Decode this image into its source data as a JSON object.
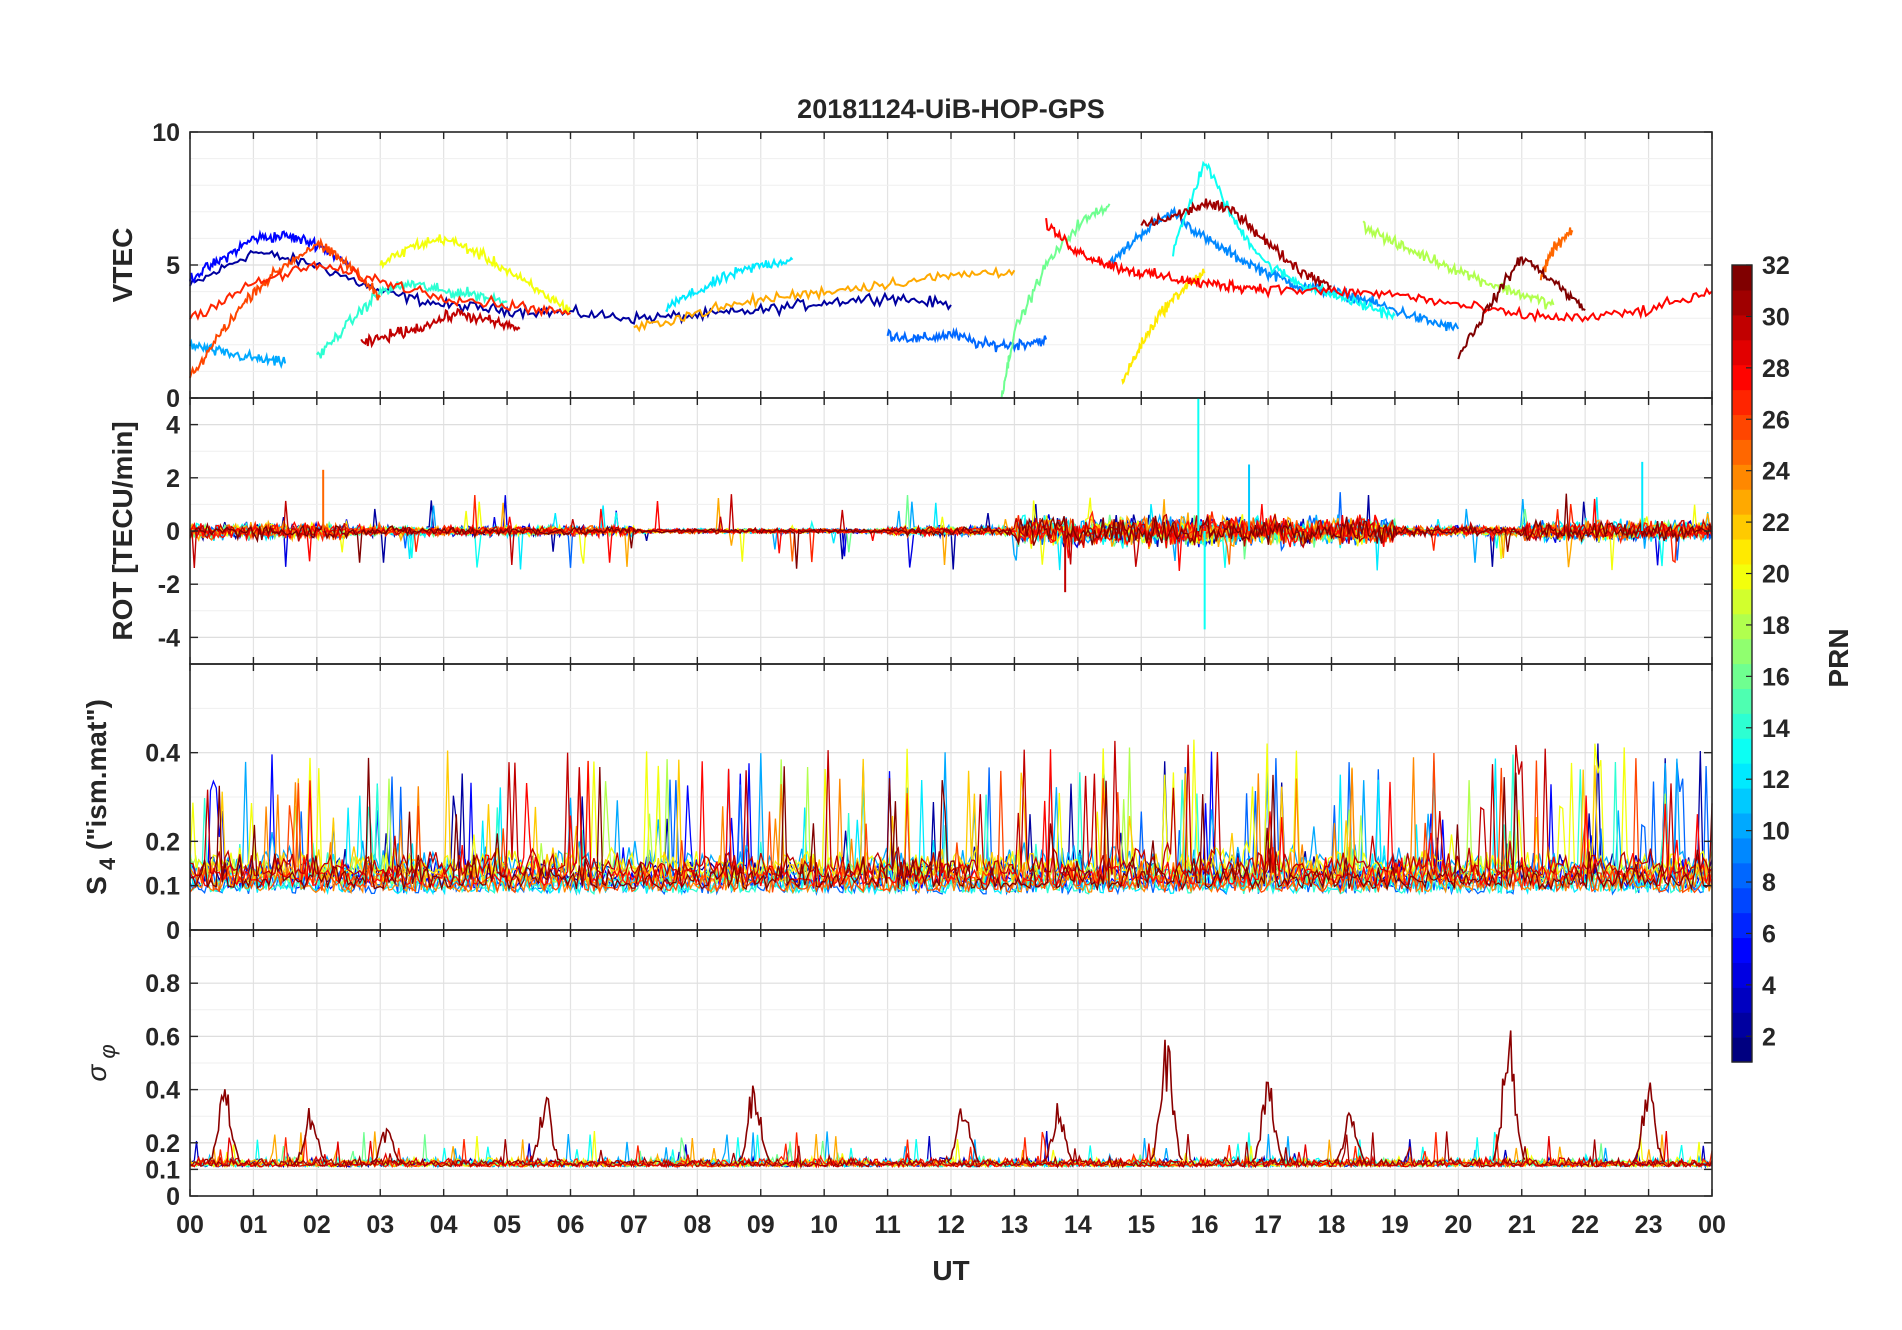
{
  "figure": {
    "title": "20181124-UiB-HOP-GPS",
    "xlabel": "UT",
    "xticks": [
      "00",
      "01",
      "02",
      "03",
      "04",
      "05",
      "06",
      "07",
      "08",
      "09",
      "10",
      "11",
      "12",
      "13",
      "14",
      "15",
      "16",
      "17",
      "18",
      "19",
      "20",
      "21",
      "22",
      "23",
      "00"
    ]
  },
  "colorbar": {
    "label": "PRN",
    "range": [
      1,
      32
    ],
    "ticks": [
      2,
      4,
      6,
      8,
      10,
      12,
      14,
      16,
      18,
      20,
      22,
      24,
      26,
      28,
      30,
      32
    ],
    "colormap": "jet",
    "colors": [
      "#00008f",
      "#0000ff",
      "#00ffff",
      "#ffff00",
      "#ff0000",
      "#800000"
    ]
  },
  "chart_data": [
    {
      "type": "line",
      "panel": "VTEC",
      "ylabel": "VTEC",
      "ylim": [
        0,
        10
      ],
      "yticks": [
        0,
        5,
        10
      ],
      "xlim": [
        0,
        24
      ],
      "grid": true,
      "series": [
        {
          "prn": 2,
          "x": [
            0,
            1,
            2,
            3,
            4,
            5,
            6,
            7,
            8,
            9,
            10,
            11,
            12
          ],
          "y": [
            4.2,
            5.5,
            5.0,
            4.0,
            3.5,
            3.3,
            3.2,
            3.0,
            3.1,
            3.3,
            3.6,
            3.8,
            3.5
          ]
        },
        {
          "prn": 5,
          "x": [
            0,
            0.5,
            1,
            1.5,
            2,
            2.5
          ],
          "y": [
            4.5,
            5.2,
            6.0,
            6.1,
            5.8,
            5.0
          ]
        },
        {
          "prn": 8,
          "x": [
            11,
            11.5,
            12,
            12.5,
            13,
            13.5
          ],
          "y": [
            2.4,
            2.2,
            2.4,
            2.0,
            2.0,
            2.2
          ]
        },
        {
          "prn": 9,
          "x": [
            14.5,
            15,
            15.5,
            16,
            16.5,
            17,
            17.5,
            18,
            18.5,
            19,
            19.5,
            20
          ],
          "y": [
            5.0,
            6.2,
            7.0,
            6.0,
            5.3,
            4.7,
            4.2,
            4.0,
            3.7,
            3.3,
            2.9,
            2.6
          ]
        },
        {
          "prn": 10,
          "x": [
            0,
            0.5,
            1,
            1.5
          ],
          "y": [
            2.0,
            1.7,
            1.5,
            1.3
          ]
        },
        {
          "prn": 12,
          "x": [
            7.5,
            8,
            8.5,
            9,
            9.5
          ],
          "y": [
            3.4,
            4.0,
            4.6,
            5.0,
            5.2
          ]
        },
        {
          "prn": 13,
          "x": [
            15.5,
            16,
            16.5,
            17,
            17.5,
            18,
            18.5,
            19
          ],
          "y": [
            5.5,
            8.9,
            6.5,
            5.0,
            4.3,
            3.9,
            3.5,
            3.1
          ]
        },
        {
          "prn": 14,
          "x": [
            2,
            2.5,
            3,
            3.5,
            4,
            4.5,
            5
          ],
          "y": [
            1.5,
            2.8,
            4.0,
            4.3,
            4.0,
            3.9,
            3.6
          ]
        },
        {
          "prn": 16,
          "x": [
            12.8,
            13,
            13.5,
            14,
            14.5
          ],
          "y": [
            0.1,
            2.5,
            5.0,
            6.5,
            7.3
          ]
        },
        {
          "prn": 18,
          "x": [
            18.5,
            19,
            19.5,
            20,
            20.5,
            21,
            21.5
          ],
          "y": [
            6.5,
            5.8,
            5.3,
            4.8,
            4.3,
            3.9,
            3.5
          ]
        },
        {
          "prn": 20,
          "x": [
            3,
            3.5,
            4,
            4.5,
            5,
            5.5,
            6
          ],
          "y": [
            5.0,
            5.7,
            6.0,
            5.5,
            4.8,
            4.0,
            3.3
          ]
        },
        {
          "prn": 21,
          "x": [
            14.7,
            15,
            15.3,
            15.7,
            16
          ],
          "y": [
            0.6,
            2.0,
            3.2,
            4.2,
            4.7
          ]
        },
        {
          "prn": 23,
          "x": [
            7,
            8,
            9,
            10,
            11,
            12,
            13
          ],
          "y": [
            2.6,
            3.2,
            3.7,
            4.0,
            4.3,
            4.6,
            4.8
          ]
        },
        {
          "prn": 25,
          "x": [
            21.3,
            21.5,
            21.8
          ],
          "y": [
            4.5,
            5.6,
            6.3
          ]
        },
        {
          "prn": 26,
          "x": [
            0,
            0.5,
            1,
            1.5,
            2,
            2.5,
            3
          ],
          "y": [
            0.7,
            2.5,
            4.0,
            5.0,
            5.8,
            5.0,
            3.8
          ]
        },
        {
          "prn": 27,
          "x": [
            0,
            1,
            2,
            3,
            4,
            5,
            6
          ],
          "y": [
            3.0,
            4.3,
            5.0,
            4.4,
            3.8,
            3.5,
            3.2
          ]
        },
        {
          "prn": 28,
          "x": [
            13.5,
            14,
            14.5,
            15,
            15.5,
            16,
            16.5,
            17,
            18,
            19,
            20,
            21,
            22,
            23,
            24
          ],
          "y": [
            6.5,
            5.5,
            5.0,
            4.7,
            4.5,
            4.3,
            4.2,
            4.1,
            4.0,
            3.9,
            3.5,
            3.1,
            3.0,
            3.3,
            4.0
          ]
        },
        {
          "prn": 30,
          "x": [
            2.7,
            3.2,
            3.7,
            4.2,
            4.7,
            5.2
          ],
          "y": [
            2.0,
            2.4,
            2.7,
            3.2,
            2.9,
            2.6
          ]
        },
        {
          "prn": 31,
          "x": [
            15,
            15.5,
            16,
            16.5,
            17,
            17.5,
            18
          ],
          "y": [
            6.5,
            6.8,
            7.3,
            7.0,
            5.8,
            4.8,
            4.2
          ]
        },
        {
          "prn": 32,
          "x": [
            20,
            20.5,
            21,
            21.5,
            22
          ],
          "y": [
            1.6,
            3.5,
            5.3,
            4.4,
            3.3
          ]
        }
      ]
    },
    {
      "type": "line",
      "panel": "ROT",
      "ylabel": "ROT [TECU/min]",
      "ylim": [
        -5,
        5
      ],
      "yticks": [
        -4,
        -2,
        0,
        2,
        4
      ],
      "xlim": [
        0,
        24
      ],
      "grid": true,
      "annotations": [
        {
          "prn": 25,
          "x": 2.1,
          "y": 2.3
        },
        {
          "prn": 13,
          "x": 15.9,
          "y": 5.0
        },
        {
          "prn": 13,
          "x": 16.0,
          "y": -3.7
        },
        {
          "prn": 12,
          "x": 22.9,
          "y": 2.6
        },
        {
          "prn": 11,
          "x": 16.7,
          "y": 2.5
        },
        {
          "prn": 30,
          "x": 13.8,
          "y": -2.3
        }
      ]
    },
    {
      "type": "line",
      "panel": "S4",
      "ylabel_main": "S",
      "ylabel_sub": "4",
      "ylabel_rest": " (\"ism.mat\")",
      "ylim": [
        0,
        0.6
      ],
      "yticks": [
        0,
        0.1,
        0.2,
        0.4
      ],
      "xlim": [
        0,
        24
      ],
      "grid": true
    },
    {
      "type": "line",
      "panel": "sigma_phi",
      "ylabel_main": "σ",
      "ylabel_sub": "φ",
      "ylim": [
        0,
        1
      ],
      "yticks": [
        0,
        0.1,
        0.2,
        0.4,
        0.6,
        0.8
      ],
      "xlim": [
        0,
        24
      ],
      "grid": true,
      "peaks": [
        {
          "x": 0.55,
          "y": 0.44
        },
        {
          "x": 1.9,
          "y": 0.35
        },
        {
          "x": 3.1,
          "y": 0.27
        },
        {
          "x": 5.6,
          "y": 0.4
        },
        {
          "x": 8.9,
          "y": 0.47
        },
        {
          "x": 12.2,
          "y": 0.4
        },
        {
          "x": 13.7,
          "y": 0.37
        },
        {
          "x": 15.4,
          "y": 0.61
        },
        {
          "x": 17.0,
          "y": 0.46
        },
        {
          "x": 18.3,
          "y": 0.34
        },
        {
          "x": 20.8,
          "y": 0.67
        },
        {
          "x": 23.0,
          "y": 0.44
        }
      ]
    }
  ]
}
